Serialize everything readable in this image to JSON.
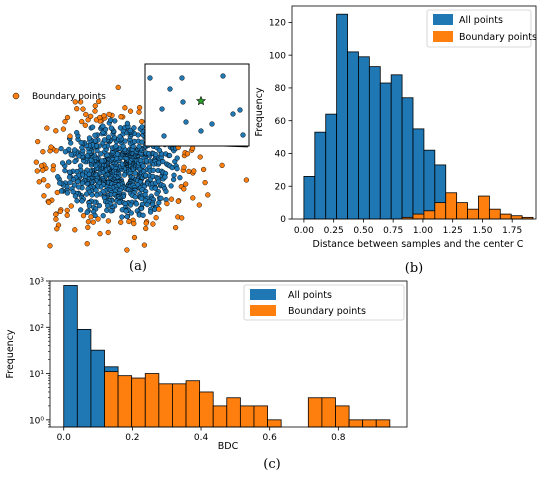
{
  "captions": {
    "a": "(a)",
    "b": "(b)",
    "c": "(c)"
  },
  "colors": {
    "all": "#1f77b4",
    "boundary": "#ff7f0e",
    "center": "#2ca02c"
  },
  "chart_data": [
    {
      "panel": "a",
      "type": "scatter",
      "legend": [
        "Boundary points"
      ],
      "legend_position": "top-left",
      "inset": "zoomed view of the region around the center marker (star)",
      "axes_visible": false
    },
    {
      "panel": "b",
      "type": "bar",
      "xlabel": "Distance between samples and the center C",
      "ylabel": "Frequency",
      "xlim": [
        -0.1,
        1.95
      ],
      "ylim": [
        0,
        130
      ],
      "xticks": [
        "0.00",
        "0.25",
        "0.50",
        "0.75",
        "1.00",
        "1.25",
        "1.50",
        "1.75"
      ],
      "xtick_values": [
        0,
        0.25,
        0.5,
        0.75,
        1.0,
        1.25,
        1.5,
        1.75
      ],
      "yticks": [
        0,
        20,
        40,
        60,
        80,
        100,
        120
      ],
      "legend_position": "top-right",
      "bin_width": 0.0917,
      "series": [
        {
          "name": "All points",
          "bins_start": [
            0.0,
            0.0917,
            0.1833,
            0.275,
            0.3667,
            0.4583,
            0.55,
            0.6417,
            0.7333,
            0.825,
            0.9167,
            1.0083,
            1.1,
            1.1917
          ],
          "values": [
            26,
            53,
            64,
            125,
            102,
            99,
            93,
            83,
            88,
            74,
            55,
            42,
            33,
            6
          ]
        },
        {
          "name": "Boundary points",
          "bins_start": [
            0.825,
            0.9167,
            1.0083,
            1.1,
            1.1917,
            1.2833,
            1.375,
            1.4667,
            1.5583,
            1.65,
            1.7417,
            1.8333
          ],
          "values": [
            1,
            3,
            5,
            10,
            16,
            10,
            6,
            14,
            6,
            3,
            2,
            1
          ]
        }
      ]
    },
    {
      "panel": "c",
      "type": "bar",
      "xlabel": "BDC",
      "ylabel": "Frequency",
      "yscale": "log",
      "xlim": [
        -0.04,
        1.0
      ],
      "ylim": [
        0.7,
        1000
      ],
      "xticks": [
        "0.0",
        "0.2",
        "0.4",
        "0.6",
        "0.8"
      ],
      "xtick_values": [
        0.0,
        0.2,
        0.4,
        0.6,
        0.8
      ],
      "yticks": [
        "10⁰",
        "10¹",
        "10²",
        "10³"
      ],
      "ytick_values": [
        1,
        10,
        100,
        1000
      ],
      "legend_position": "top-center",
      "bin_width": 0.0396,
      "series": [
        {
          "name": "All points",
          "bins_start": [
            0.0,
            0.0396,
            0.0792,
            0.1188
          ],
          "values": [
            800,
            90,
            32,
            14
          ]
        },
        {
          "name": "Boundary points",
          "bins_start": [
            0.1188,
            0.1583,
            0.1979,
            0.2375,
            0.2771,
            0.3167,
            0.3563,
            0.3958,
            0.4354,
            0.475,
            0.5146,
            0.5542,
            0.5938,
            0.7125,
            0.7521,
            0.7917,
            0.8313,
            0.8708,
            0.9104
          ],
          "values": [
            11,
            9,
            8,
            10,
            6,
            6,
            7,
            4,
            2,
            3,
            2,
            2,
            1,
            3,
            3,
            2,
            1,
            1,
            1
          ]
        }
      ]
    }
  ]
}
